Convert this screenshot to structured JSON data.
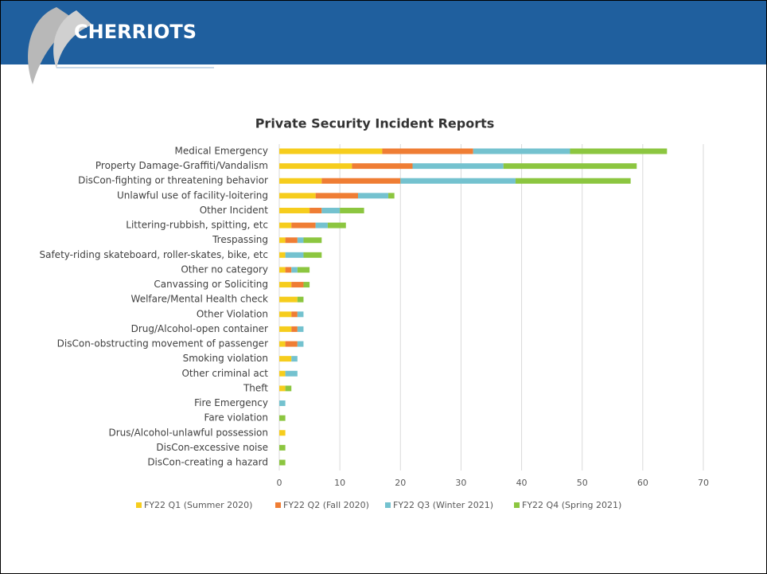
{
  "header": {
    "logo_text": "CHERRIOTS"
  },
  "chart_data": {
    "type": "bar",
    "orientation": "horizontal",
    "stacked": true,
    "title": "Private Security Incident Reports",
    "categories": [
      "Medical Emergency",
      "Property Damage-Graffiti/Vandalism",
      "DisCon-fighting or threatening behavior",
      "Unlawful use of facility-loitering",
      "Other Incident",
      "Littering-rubbish, spitting, etc",
      "Trespassing",
      "Safety-riding skateboard, roller-skates, bike, etc",
      "Other no category",
      "Canvassing or Soliciting",
      "Welfare/Mental Health check",
      "Other Violation",
      "Drug/Alcohol-open container",
      "DisCon-obstructing movement of passenger",
      "Smoking violation",
      "Other criminal act",
      "Theft",
      "Fire Emergency",
      "Fare violation",
      "Drus/Alcohol-unlawful possession",
      "DisCon-excessive noise",
      "DisCon-creating a hazard"
    ],
    "series": [
      {
        "name": "FY22 Q1 (Summer 2020)",
        "color": "#f6cd1d",
        "values": [
          17,
          12,
          7,
          6,
          5,
          2,
          1,
          1,
          1,
          2,
          3,
          2,
          2,
          1,
          2,
          1,
          1,
          0,
          0,
          1,
          0,
          0
        ]
      },
      {
        "name": "FY22 Q2 (Fall 2020)",
        "color": "#ef7d34",
        "values": [
          15,
          10,
          13,
          7,
          2,
          4,
          2,
          0,
          1,
          2,
          0,
          1,
          1,
          2,
          0,
          0,
          0,
          0,
          0,
          0,
          0,
          0
        ]
      },
      {
        "name": "FY22 Q3 (Winter 2021)",
        "color": "#74c2cf",
        "values": [
          16,
          15,
          19,
          5,
          3,
          2,
          1,
          3,
          1,
          0,
          0,
          1,
          1,
          1,
          1,
          2,
          0,
          1,
          0,
          0,
          0,
          0
        ]
      },
      {
        "name": "FY22 Q4 (Spring 2021)",
        "color": "#8cc640",
        "values": [
          16,
          22,
          19,
          1,
          4,
          3,
          3,
          3,
          2,
          1,
          1,
          0,
          0,
          0,
          0,
          0,
          1,
          0,
          1,
          0,
          1,
          1
        ]
      }
    ],
    "xlim": [
      0,
      70
    ],
    "xticks": [
      0,
      10,
      20,
      30,
      40,
      50,
      60,
      70
    ],
    "grid": true,
    "legend": "bottom"
  }
}
